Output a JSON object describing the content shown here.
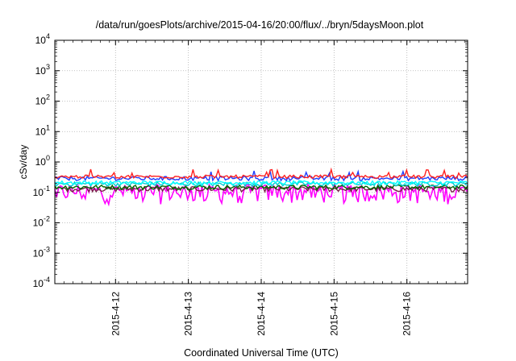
{
  "chart_data": {
    "type": "line",
    "title": "/data/run/goesPlots/archive/2015-04-16/20:00/flux/../bryn/5daysMoon.plot",
    "xlabel": "Coordinated Universal Time (UTC)",
    "ylabel": "cSv/day",
    "yscale": "log",
    "ylim": [
      0.0001,
      10000
    ],
    "y_ticks": [
      {
        "base": "10",
        "exp": "-4",
        "value": 0.0001
      },
      {
        "base": "10",
        "exp": "-3",
        "value": 0.001
      },
      {
        "base": "10",
        "exp": "-2",
        "value": 0.01
      },
      {
        "base": "10",
        "exp": "-1",
        "value": 0.1
      },
      {
        "base": "10",
        "exp": "0",
        "value": 1
      },
      {
        "base": "10",
        "exp": "1",
        "value": 10
      },
      {
        "base": "10",
        "exp": "2",
        "value": 100
      },
      {
        "base": "10",
        "exp": "3",
        "value": 1000
      },
      {
        "base": "10",
        "exp": "4",
        "value": 10000
      }
    ],
    "x_range": [
      "2015-04-11 04:00",
      "2015-04-16 20:00"
    ],
    "x_ticks": [
      {
        "label": "2015-4-12",
        "value": "2015-04-12 00:00"
      },
      {
        "label": "2015-4-13",
        "value": "2015-04-13 00:00"
      },
      {
        "label": "2015-4-14",
        "value": "2015-04-14 00:00"
      },
      {
        "label": "2015-4-15",
        "value": "2015-04-15 00:00"
      },
      {
        "label": "2015-4-16",
        "value": "2015-04-16 00:00"
      }
    ],
    "grid": true,
    "series": [
      {
        "color": "#ff00ff",
        "base": 0.11,
        "spread": 0.14
      },
      {
        "color": "#7a1f4a",
        "base": 0.13,
        "spread": 0.05
      },
      {
        "color": "#006400",
        "base": 0.15,
        "spread": 0.05
      },
      {
        "color": "#00ced1",
        "base": 0.19,
        "spread": 0.06
      },
      {
        "color": "#00ffff",
        "base": 0.21,
        "spread": 0.06
      },
      {
        "color": "#1e3cff",
        "base": 0.29,
        "spread": 0.09
      },
      {
        "color": "#ff2020",
        "base": 0.33,
        "spread": 0.08
      }
    ]
  }
}
